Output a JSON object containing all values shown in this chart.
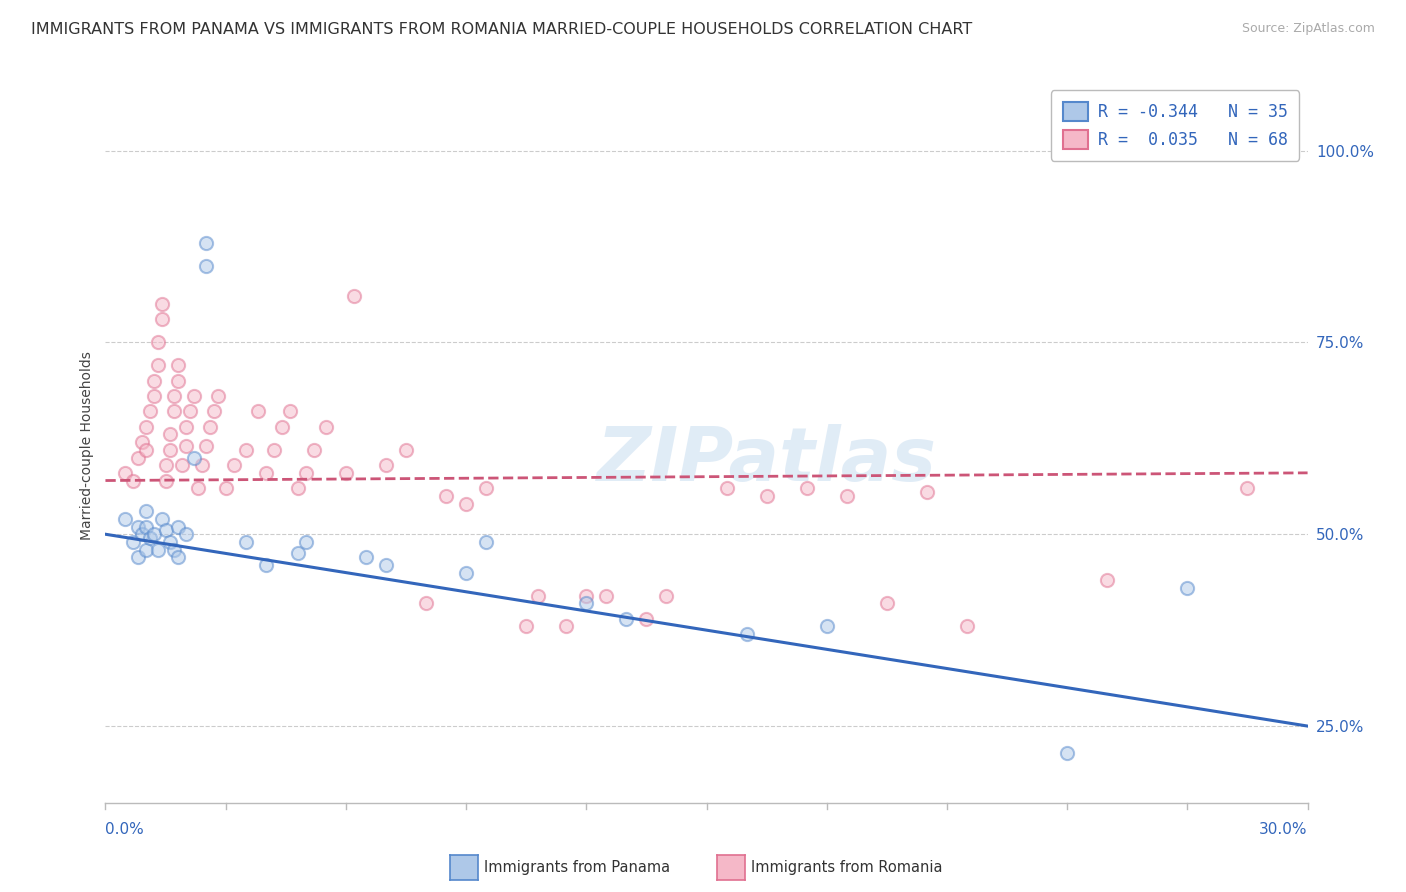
{
  "title": "IMMIGRANTS FROM PANAMA VS IMMIGRANTS FROM ROMANIA MARRIED-COUPLE HOUSEHOLDS CORRELATION CHART",
  "source": "Source: ZipAtlas.com",
  "ylabel": "Married-couple Households",
  "ytick_positions": [
    0.25,
    0.5,
    0.75,
    1.0
  ],
  "ytick_labels": [
    "25.0%",
    "50.0%",
    "75.0%",
    "100.0%"
  ],
  "xmin": 0.0,
  "xmax": 0.3,
  "ymin": 0.15,
  "ymax": 1.08,
  "panama_fill": "#aec8e8",
  "panama_edge": "#5588cc",
  "romania_fill": "#f5b8c8",
  "romania_edge": "#e07090",
  "panama_line_color": "#3366bb",
  "romania_line_color": "#cc5577",
  "legend_text_panama": "R = -0.344   N = 35",
  "legend_text_romania": "R =  0.035   N = 68",
  "legend_color_panama": "#3366bb",
  "legend_color_romania": "#3366bb",
  "panama_scatter": [
    [
      0.005,
      0.52
    ],
    [
      0.007,
      0.49
    ],
    [
      0.008,
      0.51
    ],
    [
      0.008,
      0.47
    ],
    [
      0.009,
      0.5
    ],
    [
      0.01,
      0.48
    ],
    [
      0.01,
      0.53
    ],
    [
      0.01,
      0.51
    ],
    [
      0.011,
      0.495
    ],
    [
      0.012,
      0.5
    ],
    [
      0.013,
      0.48
    ],
    [
      0.014,
      0.52
    ],
    [
      0.015,
      0.505
    ],
    [
      0.016,
      0.49
    ],
    [
      0.017,
      0.48
    ],
    [
      0.018,
      0.51
    ],
    [
      0.018,
      0.47
    ],
    [
      0.02,
      0.5
    ],
    [
      0.022,
      0.6
    ],
    [
      0.025,
      0.88
    ],
    [
      0.025,
      0.85
    ],
    [
      0.035,
      0.49
    ],
    [
      0.04,
      0.46
    ],
    [
      0.048,
      0.475
    ],
    [
      0.05,
      0.49
    ],
    [
      0.065,
      0.47
    ],
    [
      0.07,
      0.46
    ],
    [
      0.09,
      0.45
    ],
    [
      0.095,
      0.49
    ],
    [
      0.12,
      0.41
    ],
    [
      0.13,
      0.39
    ],
    [
      0.16,
      0.37
    ],
    [
      0.18,
      0.38
    ],
    [
      0.24,
      0.215
    ],
    [
      0.27,
      0.43
    ]
  ],
  "romania_scatter": [
    [
      0.005,
      0.58
    ],
    [
      0.007,
      0.57
    ],
    [
      0.008,
      0.6
    ],
    [
      0.009,
      0.62
    ],
    [
      0.01,
      0.64
    ],
    [
      0.01,
      0.61
    ],
    [
      0.011,
      0.66
    ],
    [
      0.012,
      0.68
    ],
    [
      0.012,
      0.7
    ],
    [
      0.013,
      0.72
    ],
    [
      0.013,
      0.75
    ],
    [
      0.014,
      0.78
    ],
    [
      0.014,
      0.8
    ],
    [
      0.015,
      0.57
    ],
    [
      0.015,
      0.59
    ],
    [
      0.016,
      0.61
    ],
    [
      0.016,
      0.63
    ],
    [
      0.017,
      0.66
    ],
    [
      0.017,
      0.68
    ],
    [
      0.018,
      0.7
    ],
    [
      0.018,
      0.72
    ],
    [
      0.019,
      0.59
    ],
    [
      0.02,
      0.615
    ],
    [
      0.02,
      0.64
    ],
    [
      0.021,
      0.66
    ],
    [
      0.022,
      0.68
    ],
    [
      0.023,
      0.56
    ],
    [
      0.024,
      0.59
    ],
    [
      0.025,
      0.615
    ],
    [
      0.026,
      0.64
    ],
    [
      0.027,
      0.66
    ],
    [
      0.028,
      0.68
    ],
    [
      0.03,
      0.56
    ],
    [
      0.032,
      0.59
    ],
    [
      0.035,
      0.61
    ],
    [
      0.038,
      0.66
    ],
    [
      0.04,
      0.58
    ],
    [
      0.042,
      0.61
    ],
    [
      0.044,
      0.64
    ],
    [
      0.046,
      0.66
    ],
    [
      0.048,
      0.56
    ],
    [
      0.05,
      0.58
    ],
    [
      0.052,
      0.61
    ],
    [
      0.055,
      0.64
    ],
    [
      0.06,
      0.58
    ],
    [
      0.062,
      0.81
    ],
    [
      0.07,
      0.59
    ],
    [
      0.075,
      0.61
    ],
    [
      0.08,
      0.41
    ],
    [
      0.085,
      0.55
    ],
    [
      0.09,
      0.54
    ],
    [
      0.095,
      0.56
    ],
    [
      0.105,
      0.38
    ],
    [
      0.108,
      0.42
    ],
    [
      0.115,
      0.38
    ],
    [
      0.12,
      0.42
    ],
    [
      0.125,
      0.42
    ],
    [
      0.135,
      0.39
    ],
    [
      0.14,
      0.42
    ],
    [
      0.155,
      0.56
    ],
    [
      0.165,
      0.55
    ],
    [
      0.175,
      0.56
    ],
    [
      0.185,
      0.55
    ],
    [
      0.195,
      0.41
    ],
    [
      0.205,
      0.555
    ],
    [
      0.215,
      0.38
    ],
    [
      0.25,
      0.44
    ],
    [
      0.285,
      0.56
    ]
  ],
  "panama_trend_x": [
    0.0,
    0.3
  ],
  "panama_trend_y": [
    0.5,
    0.25
  ],
  "romania_trend_x": [
    0.0,
    0.3
  ],
  "romania_trend_y": [
    0.57,
    0.58
  ],
  "watermark": "ZIPatlas",
  "bg_color": "#ffffff",
  "grid_color": "#cccccc",
  "title_fontsize": 11.5,
  "source_fontsize": 9,
  "axis_label_fontsize": 10,
  "tick_fontsize": 11,
  "legend_fontsize": 12,
  "scatter_size": 90,
  "scatter_alpha": 0.5,
  "scatter_lw": 1.5
}
